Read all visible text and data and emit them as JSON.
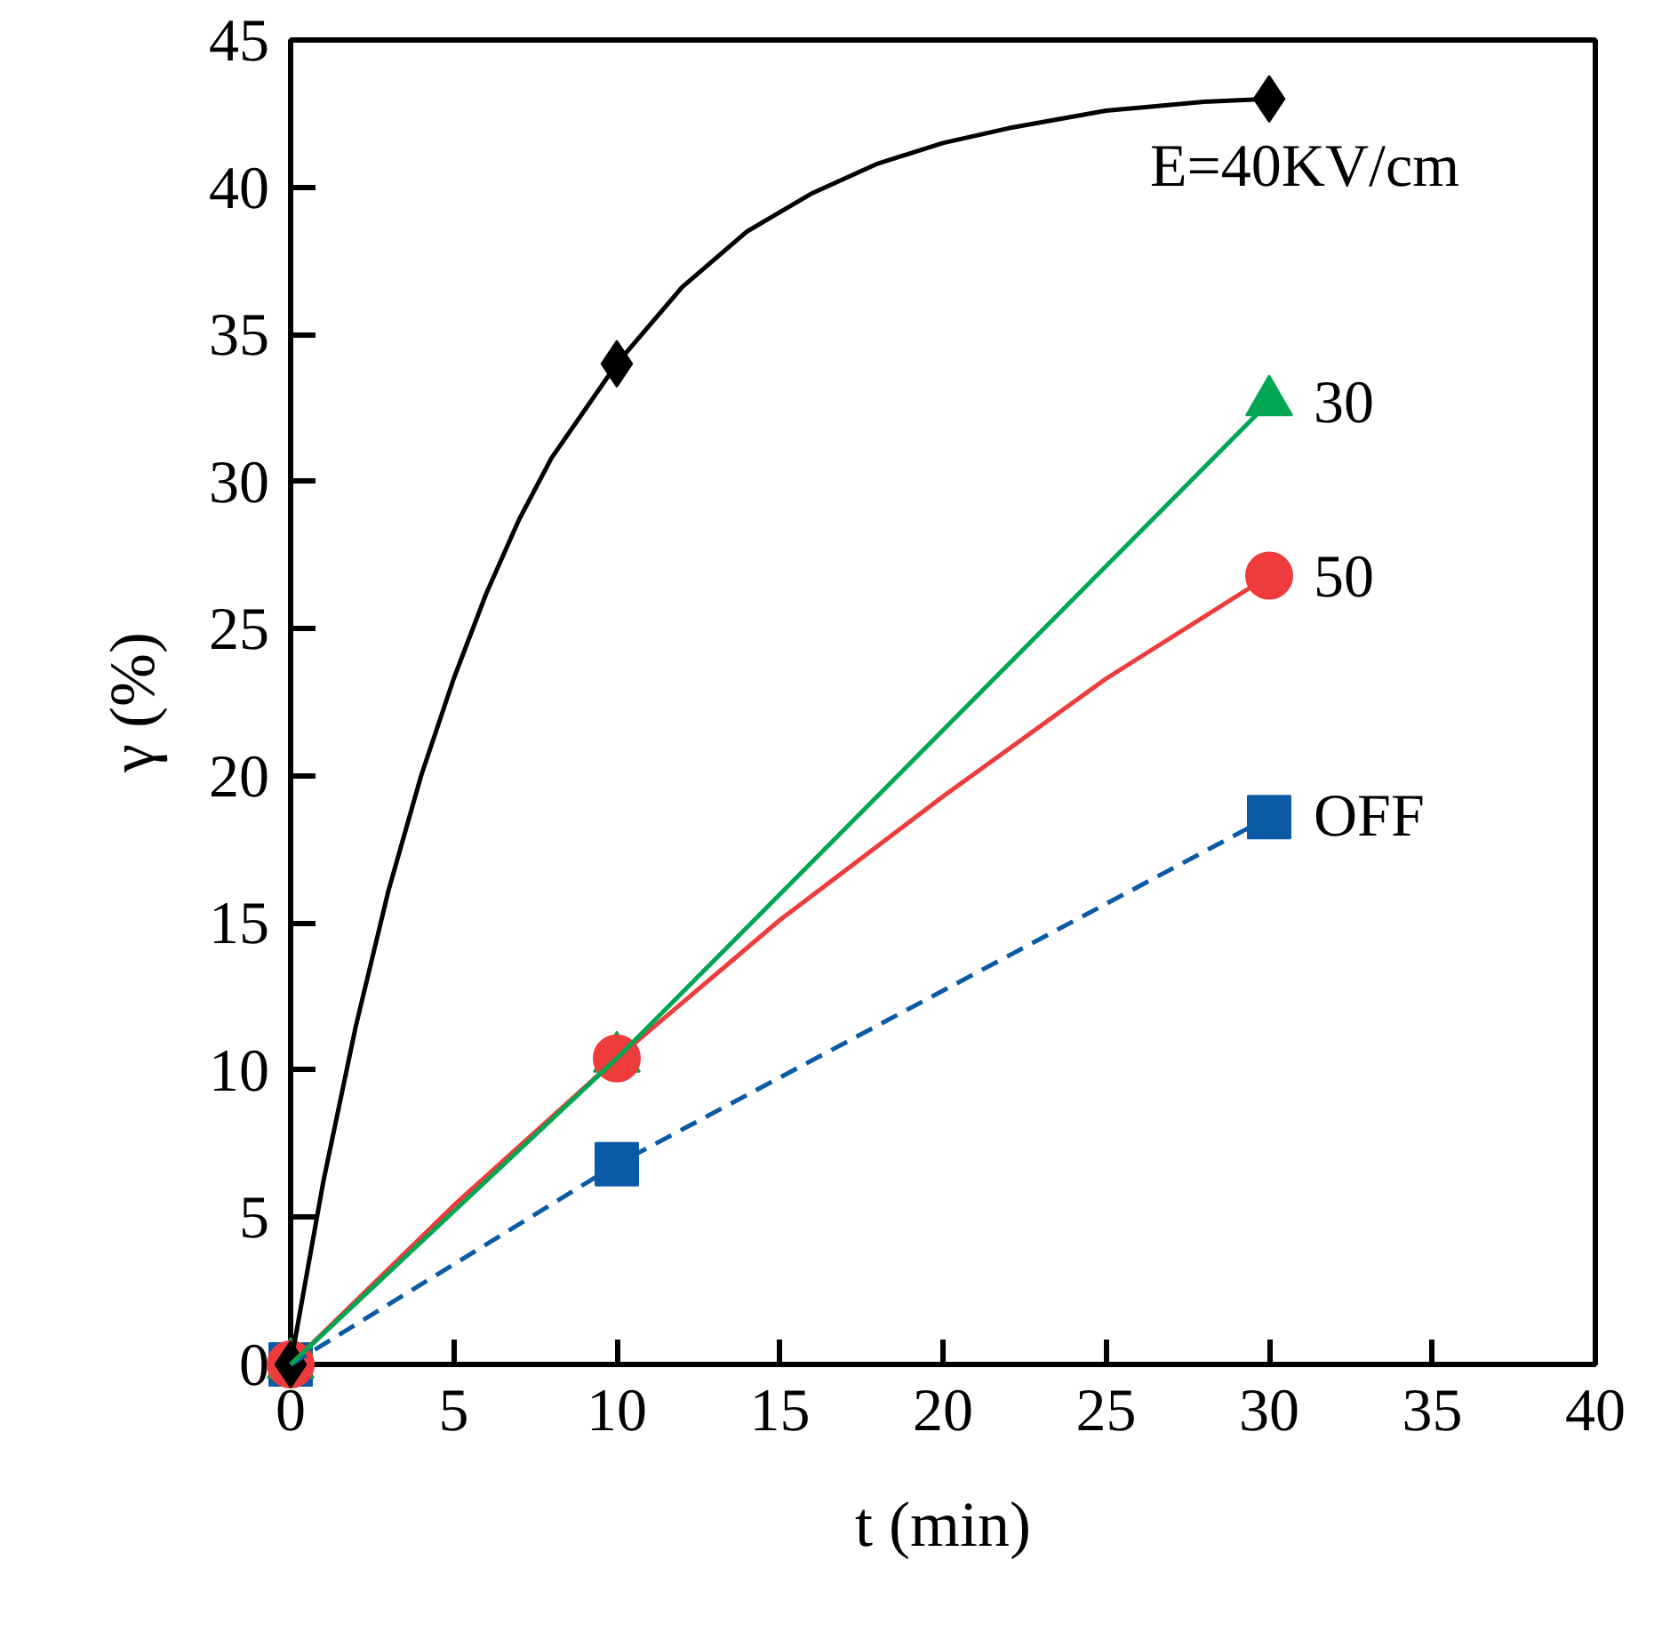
{
  "chart_data": {
    "type": "line",
    "xlabel": "t (min)",
    "ylabel": "γ (%)",
    "xlim": [
      0,
      40
    ],
    "ylim": [
      0,
      45
    ],
    "xticks": [
      0,
      5,
      10,
      15,
      20,
      25,
      30,
      35,
      40
    ],
    "yticks": [
      0,
      5,
      10,
      15,
      20,
      25,
      30,
      35,
      40,
      45
    ],
    "grid": false,
    "legend": false,
    "series": [
      {
        "marker": "none",
        "line_style": "solid",
        "color": "#000000",
        "x": [
          0,
          1,
          2,
          3,
          4,
          5,
          6,
          7,
          8,
          10,
          12,
          14,
          16,
          18,
          20,
          22,
          25,
          28,
          30
        ],
        "values": [
          0,
          6.2,
          11.5,
          16.1,
          20.0,
          23.3,
          26.2,
          28.7,
          30.8,
          34.0,
          36.6,
          38.5,
          39.8,
          40.8,
          41.5,
          42.0,
          42.6,
          42.9,
          43.0
        ]
      },
      {
        "marker": "none",
        "line_style": "solid",
        "color": "#ee3b3b",
        "x": [
          0,
          5,
          10,
          15,
          20,
          25,
          30
        ],
        "values": [
          0,
          5.4,
          10.4,
          15.1,
          19.3,
          23.3,
          26.8
        ]
      },
      {
        "name": "OFF",
        "marker": "square",
        "line_style": "dashed",
        "color": "#0b5aa5",
        "x": [
          0,
          10,
          30
        ],
        "values": [
          0,
          6.8,
          18.6
        ]
      },
      {
        "name": "30",
        "marker": "triangle",
        "line_style": "solid",
        "color": "#00a651",
        "x": [
          0,
          10,
          30
        ],
        "values": [
          0,
          10.4,
          32.7
        ]
      },
      {
        "name": "50",
        "type": "scatter",
        "marker": "circle",
        "color": "#ee3b3b",
        "x": [
          0,
          10,
          30
        ],
        "values": [
          0,
          10.4,
          26.8
        ]
      },
      {
        "name": "E=40KV/cm",
        "type": "scatter",
        "marker": "diamond",
        "color": "#000000",
        "x": [
          0,
          10,
          30
        ],
        "values": [
          0,
          34,
          43
        ]
      }
    ]
  }
}
